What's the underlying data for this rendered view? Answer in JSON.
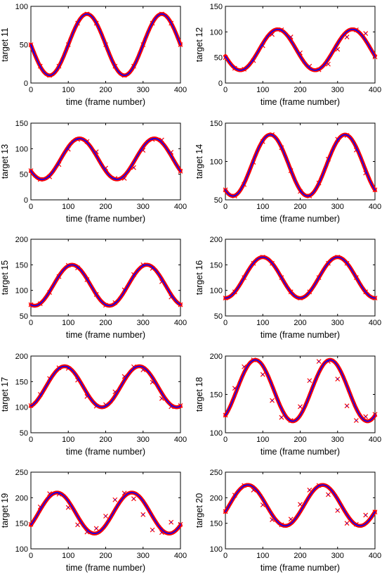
{
  "figure": {
    "background": "#ffffff",
    "colors": {
      "estimate": "#ff0000",
      "truth": "#0000ff",
      "axis": "#000000"
    }
  },
  "chart_data": [
    {
      "type": "line",
      "ylabel": "target 11",
      "xlabel": "time (frame number)",
      "xlim": [
        0,
        400
      ],
      "ylim": [
        0,
        100
      ],
      "xticks": [
        0,
        100,
        200,
        300,
        400
      ],
      "yticks": [
        0,
        50,
        100
      ],
      "grid": false,
      "wave": {
        "mean": 50,
        "amplitude": 40,
        "period": 200,
        "peak_at": 150
      },
      "series": [
        {
          "color": "#ff0000",
          "marker": "x",
          "x": [
            0,
            25,
            50,
            75,
            100,
            125,
            150,
            175,
            200,
            225,
            250,
            275,
            300,
            325,
            350,
            375,
            400
          ],
          "y": [
            50,
            22,
            10,
            22,
            50,
            78,
            90,
            78,
            50,
            22,
            10,
            22,
            50,
            78,
            90,
            78,
            50
          ]
        },
        {
          "color": "#0000ff",
          "x": [
            0,
            25,
            50,
            75,
            100,
            125,
            150,
            175,
            200,
            225,
            250,
            275,
            300,
            325,
            350,
            375,
            400
          ],
          "y": [
            50,
            22,
            10,
            22,
            50,
            78,
            90,
            78,
            50,
            22,
            10,
            22,
            50,
            78,
            90,
            78,
            50
          ]
        }
      ]
    },
    {
      "type": "line",
      "ylabel": "target 12",
      "xlabel": "time (frame number)",
      "xlim": [
        0,
        400
      ],
      "ylim": [
        0,
        150
      ],
      "xticks": [
        0,
        100,
        200,
        300,
        400
      ],
      "yticks": [
        0,
        50,
        100,
        150
      ],
      "grid": false,
      "wave": {
        "mean": 65,
        "amplitude": 40,
        "period": 200,
        "peak_at": 140
      },
      "series": [
        {
          "color": "#ff0000",
          "marker": "x",
          "x": [
            0,
            25,
            50,
            75,
            100,
            125,
            150,
            175,
            200,
            225,
            250,
            275,
            300,
            325,
            350,
            375,
            400
          ],
          "y": [
            50,
            29,
            27,
            44,
            73,
            95,
            104,
            90,
            59,
            33,
            26,
            37,
            66,
            90,
            104,
            97,
            51
          ]
        },
        {
          "color": "#0000ff",
          "x": [
            0,
            25,
            50,
            75,
            100,
            125,
            150,
            175,
            200,
            225,
            250,
            275,
            300,
            325,
            350,
            375,
            400
          ],
          "y": [
            50,
            29,
            27,
            44,
            73,
            95,
            104,
            90,
            59,
            33,
            26,
            37,
            66,
            90,
            104,
            97,
            51
          ]
        }
      ]
    },
    {
      "type": "line",
      "ylabel": "target 13",
      "xlabel": "time (frame number)",
      "xlim": [
        0,
        400
      ],
      "ylim": [
        0,
        150
      ],
      "xticks": [
        0,
        100,
        200,
        300,
        400
      ],
      "yticks": [
        0,
        50,
        100,
        150
      ],
      "grid": false,
      "wave": {
        "mean": 80,
        "amplitude": 40,
        "period": 200,
        "peak_at": 130
      },
      "series": [
        {
          "color": "#ff0000",
          "marker": "x",
          "x": [
            0,
            25,
            50,
            75,
            100,
            125,
            150,
            175,
            200,
            225,
            250,
            275,
            300,
            325,
            350,
            375,
            400
          ],
          "y": [
            57,
            40,
            45,
            69,
            99,
            118,
            114,
            94,
            62,
            42,
            42,
            63,
            97,
            118,
            117,
            93,
            56
          ]
        },
        {
          "color": "#0000ff",
          "x": [
            0,
            25,
            50,
            75,
            100,
            125,
            150,
            175,
            200,
            225,
            250,
            275,
            300,
            325,
            350,
            375,
            400
          ],
          "y": [
            57,
            40,
            45,
            69,
            99,
            118,
            114,
            94,
            62,
            42,
            42,
            63,
            97,
            118,
            117,
            93,
            56
          ]
        }
      ]
    },
    {
      "type": "line",
      "ylabel": "target 14",
      "xlabel": "time (frame number)",
      "xlim": [
        0,
        400
      ],
      "ylim": [
        50,
        150
      ],
      "xticks": [
        0,
        100,
        200,
        300,
        400
      ],
      "yticks": [
        50,
        100,
        150
      ],
      "grid": false,
      "wave": {
        "mean": 95,
        "amplitude": 40,
        "period": 200,
        "peak_at": 120
      },
      "series": [
        {
          "color": "#ff0000",
          "marker": "x",
          "x": [
            0,
            25,
            50,
            75,
            100,
            125,
            150,
            175,
            200,
            225,
            250,
            275,
            300,
            325,
            350,
            375,
            400
          ],
          "y": [
            63,
            55,
            70,
            99,
            126,
            135,
            118,
            88,
            61,
            55,
            72,
            103,
            129,
            134,
            115,
            85,
            63
          ]
        },
        {
          "color": "#0000ff",
          "x": [
            0,
            25,
            50,
            75,
            100,
            125,
            150,
            175,
            200,
            225,
            250,
            275,
            300,
            325,
            350,
            375,
            400
          ],
          "y": [
            63,
            55,
            70,
            99,
            126,
            135,
            118,
            88,
            61,
            55,
            72,
            103,
            129,
            134,
            115,
            85,
            63
          ]
        }
      ]
    },
    {
      "type": "line",
      "ylabel": "target 15",
      "xlabel": "time (frame number)",
      "xlim": [
        0,
        400
      ],
      "ylim": [
        50,
        200
      ],
      "xticks": [
        0,
        100,
        200,
        300,
        400
      ],
      "yticks": [
        50,
        100,
        150,
        200
      ],
      "grid": false,
      "wave": {
        "mean": 110,
        "amplitude": 40,
        "period": 200,
        "peak_at": 110
      },
      "series": [
        {
          "color": "#ff0000",
          "marker": "x",
          "x": [
            0,
            25,
            50,
            75,
            100,
            125,
            150,
            175,
            200,
            225,
            250,
            275,
            300,
            325,
            350,
            375,
            400
          ],
          "y": [
            72,
            74,
            96,
            127,
            149,
            144,
            121,
            92,
            71,
            76,
            101,
            131,
            150,
            143,
            117,
            87,
            72
          ]
        },
        {
          "color": "#0000ff",
          "x": [
            0,
            25,
            50,
            75,
            100,
            125,
            150,
            175,
            200,
            225,
            250,
            275,
            300,
            325,
            350,
            375,
            400
          ],
          "y": [
            72,
            74,
            96,
            127,
            149,
            144,
            121,
            92,
            71,
            76,
            101,
            131,
            150,
            143,
            117,
            87,
            72
          ]
        }
      ]
    },
    {
      "type": "line",
      "ylabel": "target 16",
      "xlabel": "time (frame number)",
      "xlim": [
        0,
        400
      ],
      "ylim": [
        50,
        200
      ],
      "xticks": [
        0,
        100,
        200,
        300,
        400
      ],
      "yticks": [
        50,
        100,
        150,
        200
      ],
      "grid": false,
      "wave": {
        "mean": 125,
        "amplitude": 40,
        "period": 200,
        "peak_at": 100
      },
      "series": [
        {
          "color": "#ff0000",
          "marker": "x",
          "x": [
            0,
            25,
            50,
            75,
            100,
            125,
            150,
            175,
            200,
            225,
            250,
            275,
            300,
            325,
            350,
            375,
            400
          ],
          "y": [
            85,
            97,
            125,
            153,
            165,
            153,
            125,
            97,
            85,
            97,
            125,
            153,
            165,
            153,
            125,
            97,
            85
          ]
        },
        {
          "color": "#0000ff",
          "x": [
            0,
            25,
            50,
            75,
            100,
            125,
            150,
            175,
            200,
            225,
            250,
            275,
            300,
            325,
            350,
            375,
            400
          ],
          "y": [
            85,
            97,
            125,
            153,
            165,
            153,
            125,
            97,
            85,
            97,
            125,
            153,
            165,
            153,
            125,
            97,
            85
          ]
        }
      ]
    },
    {
      "type": "line",
      "ylabel": "target 17",
      "xlabel": "time (frame number)",
      "xlim": [
        0,
        400
      ],
      "ylim": [
        50,
        200
      ],
      "xticks": [
        0,
        100,
        200,
        300,
        400
      ],
      "yticks": [
        50,
        100,
        150,
        200
      ],
      "grid": false,
      "wave": {
        "mean": 140,
        "amplitude": 40,
        "period": 200,
        "peak_at": 90
      },
      "series": [
        {
          "color": "#ff0000",
          "marker": "x",
          "x": [
            0,
            25,
            50,
            75,
            100,
            125,
            150,
            175,
            200,
            225,
            250,
            275,
            300,
            325,
            350,
            375,
            400
          ],
          "y": [
            103,
            125,
            156,
            177,
            176,
            153,
            121,
            102,
            105,
            130,
            160,
            179,
            173,
            149,
            117,
            101,
            103
          ]
        },
        {
          "color": "#0000ff",
          "x": [
            0,
            25,
            50,
            75,
            100,
            125,
            150,
            175,
            200,
            225,
            250,
            275,
            300,
            325,
            350,
            375,
            400
          ],
          "y": [
            103,
            125,
            156,
            177,
            176,
            153,
            121,
            102,
            105,
            130,
            160,
            179,
            173,
            149,
            117,
            101,
            103
          ]
        }
      ]
    },
    {
      "type": "line",
      "ylabel": "target 18",
      "xlabel": "time (frame number)",
      "xlim": [
        0,
        400
      ],
      "ylim": [
        100,
        200
      ],
      "xticks": [
        0,
        100,
        200,
        300,
        400
      ],
      "yticks": [
        100,
        150,
        200
      ],
      "grid": false,
      "wave": {
        "mean": 155,
        "amplitude": 40,
        "period": 200,
        "peak_at": 80
      },
      "series": [
        {
          "color": "#ff0000",
          "marker": "x",
          "x": [
            0,
            25,
            50,
            75,
            100,
            125,
            150,
            175,
            200,
            225,
            250,
            275,
            300,
            325,
            350,
            375,
            400
          ],
          "y": [
            123,
            158,
            186,
            195,
            176,
            142,
            120,
            116,
            134,
            168,
            193,
            193,
            170,
            135,
            116,
            121,
            124
          ]
        },
        {
          "color": "#0000ff",
          "x": [
            0,
            25,
            50,
            75,
            100,
            125,
            150,
            175,
            200,
            225,
            250,
            275,
            300,
            325,
            350,
            375,
            400
          ],
          "y": [
            123,
            158,
            186,
            195,
            176,
            142,
            120,
            116,
            134,
            168,
            193,
            193,
            170,
            135,
            116,
            121,
            124
          ]
        }
      ]
    },
    {
      "type": "line",
      "ylabel": "target 19",
      "xlabel": "time (frame number)",
      "xlim": [
        0,
        400
      ],
      "ylim": [
        100,
        250
      ],
      "xticks": [
        0,
        100,
        200,
        300,
        400
      ],
      "yticks": [
        100,
        150,
        200,
        250
      ],
      "grid": false,
      "wave": {
        "mean": 170,
        "amplitude": 40,
        "period": 200,
        "peak_at": 70
      },
      "series": [
        {
          "color": "#ff0000",
          "marker": "x",
          "x": [
            0,
            25,
            50,
            75,
            100,
            125,
            150,
            175,
            200,
            225,
            250,
            275,
            300,
            325,
            350,
            375,
            400
          ],
          "y": [
            148,
            182,
            208,
            207,
            181,
            147,
            133,
            140,
            164,
            196,
            209,
            198,
            167,
            137,
            132,
            152,
            148
          ]
        },
        {
          "color": "#0000ff",
          "x": [
            0,
            25,
            50,
            75,
            100,
            125,
            150,
            175,
            200,
            225,
            250,
            275,
            300,
            325,
            350,
            375,
            400
          ],
          "y": [
            148,
            182,
            208,
            207,
            181,
            147,
            133,
            140,
            164,
            196,
            209,
            198,
            167,
            137,
            132,
            152,
            148
          ]
        }
      ]
    },
    {
      "type": "line",
      "ylabel": "target 20",
      "xlabel": "time (frame number)",
      "xlim": [
        0,
        400
      ],
      "ylim": [
        100,
        250
      ],
      "xticks": [
        0,
        100,
        200,
        300,
        400
      ],
      "yticks": [
        100,
        150,
        200,
        250
      ],
      "grid": false,
      "wave": {
        "mean": 185,
        "amplitude": 40,
        "period": 200,
        "peak_at": 60
      },
      "series": [
        {
          "color": "#ff0000",
          "marker": "x",
          "x": [
            0,
            25,
            50,
            75,
            100,
            125,
            150,
            175,
            200,
            225,
            250,
            275,
            300,
            325,
            350,
            375,
            400
          ],
          "y": [
            173,
            205,
            224,
            215,
            186,
            157,
            147,
            158,
            187,
            215,
            224,
            206,
            175,
            150,
            148,
            166,
            172
          ]
        },
        {
          "color": "#0000ff",
          "x": [
            0,
            25,
            50,
            75,
            100,
            125,
            150,
            175,
            200,
            225,
            250,
            275,
            300,
            325,
            350,
            375,
            400
          ],
          "y": [
            173,
            205,
            224,
            215,
            186,
            157,
            147,
            158,
            187,
            215,
            224,
            206,
            175,
            150,
            148,
            166,
            172
          ]
        }
      ]
    }
  ]
}
